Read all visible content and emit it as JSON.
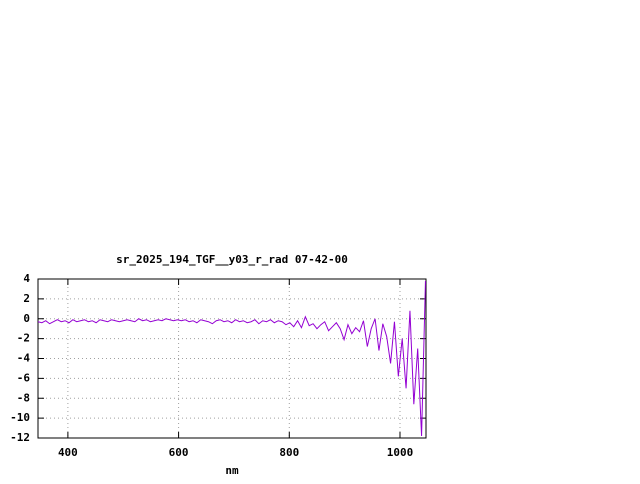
{
  "chart_data": {
    "type": "line",
    "title": "sr_2025_194_TGF__y03_r_rad 07-42-00",
    "x_label": "nm",
    "x": [
      346,
      353,
      360,
      367,
      374,
      381,
      388,
      395,
      402,
      409,
      416,
      423,
      430,
      437,
      444,
      451,
      458,
      465,
      472,
      479,
      486,
      493,
      500,
      507,
      514,
      521,
      528,
      535,
      542,
      549,
      556,
      563,
      570,
      577,
      584,
      591,
      598,
      605,
      612,
      619,
      626,
      633,
      640,
      647,
      654,
      661,
      668,
      675,
      682,
      689,
      696,
      703,
      710,
      717,
      724,
      731,
      738,
      745,
      752,
      759,
      766,
      773,
      780,
      787,
      794,
      801,
      808,
      815,
      822,
      829,
      836,
      843,
      850,
      857,
      864,
      871,
      878,
      885,
      892,
      899,
      906,
      913,
      920,
      927,
      934,
      941,
      948,
      955,
      962,
      969,
      976,
      983,
      990,
      997,
      1004,
      1011,
      1018,
      1025,
      1032,
      1039,
      1046
    ],
    "series": [
      {
        "color": "#9400d3",
        "values": [
          -0.3,
          -0.4,
          -0.2,
          -0.5,
          -0.3,
          -0.1,
          -0.3,
          -0.2,
          -0.4,
          -0.1,
          -0.3,
          -0.2,
          -0.1,
          -0.3,
          -0.2,
          -0.4,
          -0.1,
          -0.2,
          -0.3,
          -0.1,
          -0.2,
          -0.3,
          -0.2,
          -0.1,
          -0.2,
          -0.3,
          0,
          -0.2,
          -0.1,
          -0.3,
          -0.2,
          -0.1,
          -0.2,
          0,
          -0.1,
          -0.2,
          -0.1,
          -0.2,
          -0.1,
          -0.3,
          -0.2,
          -0.4,
          -0.1,
          -0.2,
          -0.3,
          -0.5,
          -0.2,
          -0.1,
          -0.3,
          -0.2,
          -0.4,
          -0.1,
          -0.3,
          -0.2,
          -0.4,
          -0.3,
          -0.1,
          -0.5,
          -0.2,
          -0.3,
          -0.1,
          -0.4,
          -0.2,
          -0.3,
          -0.6,
          -0.4,
          -0.8,
          -0.2,
          -0.9,
          0.2,
          -0.7,
          -0.5,
          -1.0,
          -0.6,
          -0.3,
          -1.2,
          -0.8,
          -0.4,
          -1.0,
          -2.1,
          -0.6,
          -1.5,
          -0.9,
          -1.3,
          -0.2,
          -2.8,
          -1.0,
          0,
          -3.2,
          -0.5,
          -1.8,
          -4.5,
          -0.3,
          -5.8,
          -2.0,
          -7.0,
          0.8,
          -8.6,
          -3.0,
          -11.8,
          3.8
        ]
      }
    ],
    "xlim": [
      346,
      1047
    ],
    "xticks": [
      400,
      600,
      800,
      1000
    ],
    "ylim": [
      -12,
      4
    ],
    "yticks": [
      -12,
      -10,
      -8,
      -6,
      -4,
      -2,
      0,
      2,
      4
    ],
    "grid": true
  }
}
